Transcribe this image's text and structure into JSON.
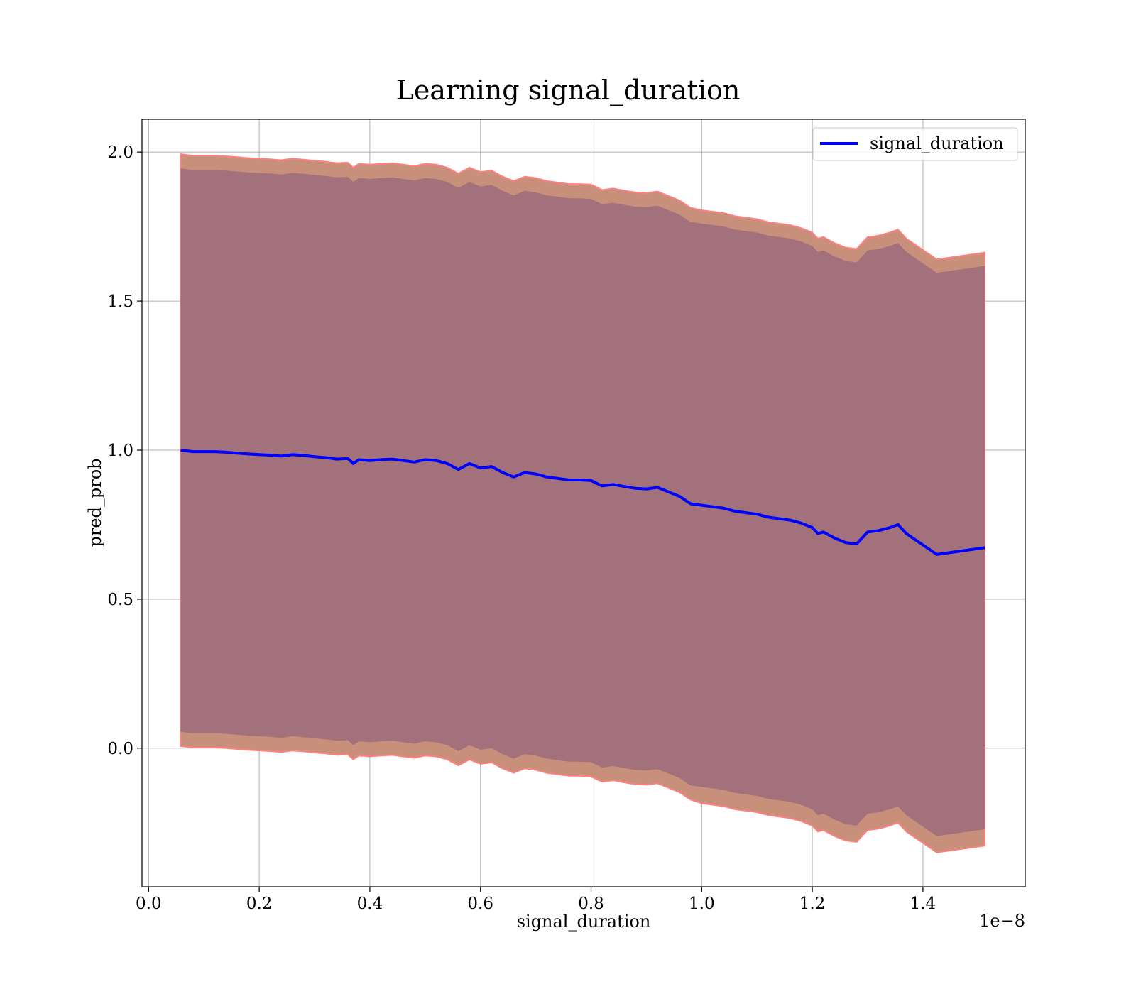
{
  "chart_data": {
    "type": "line",
    "title": "Learning signal_duration",
    "xlabel": "signal_duration",
    "ylabel": "pred_prob",
    "x_offset_text": "1e−8",
    "xlim": [
      -0.012,
      1.585
    ],
    "ylim": [
      -0.465,
      2.11
    ],
    "x_ticks": [
      0.0,
      0.2,
      0.4,
      0.6,
      0.8,
      1.0,
      1.2,
      1.4
    ],
    "x_tick_labels": [
      "0.0",
      "0.2",
      "0.4",
      "0.6",
      "0.8",
      "1.0",
      "1.2",
      "1.4"
    ],
    "y_ticks": [
      0.0,
      0.5,
      1.0,
      1.5,
      2.0
    ],
    "y_tick_labels": [
      "0.0",
      "0.5",
      "1.0",
      "1.5",
      "2.0"
    ],
    "grid": true,
    "legend": {
      "position": "top-right",
      "entries": [
        "signal_duration"
      ]
    },
    "colors": {
      "line": "#0000ff",
      "outer_band": "#c8907a",
      "outer_band_edge": "#ff8080",
      "inner_band": "#a2717b"
    },
    "series": [
      {
        "name": "signal_duration",
        "x": [
          0.058,
          0.08,
          0.1,
          0.12,
          0.14,
          0.16,
          0.18,
          0.2,
          0.22,
          0.24,
          0.26,
          0.28,
          0.3,
          0.32,
          0.34,
          0.36,
          0.37,
          0.38,
          0.4,
          0.42,
          0.44,
          0.46,
          0.48,
          0.5,
          0.52,
          0.54,
          0.56,
          0.58,
          0.6,
          0.62,
          0.64,
          0.66,
          0.68,
          0.7,
          0.72,
          0.74,
          0.76,
          0.78,
          0.8,
          0.82,
          0.84,
          0.86,
          0.88,
          0.9,
          0.92,
          0.94,
          0.96,
          0.98,
          1.0,
          1.02,
          1.04,
          1.06,
          1.08,
          1.1,
          1.12,
          1.14,
          1.16,
          1.18,
          1.2,
          1.21,
          1.22,
          1.24,
          1.26,
          1.28,
          1.3,
          1.32,
          1.34,
          1.355,
          1.37,
          1.425,
          1.512
        ],
        "y": [
          1.0,
          0.995,
          0.995,
          0.995,
          0.993,
          0.99,
          0.987,
          0.985,
          0.983,
          0.98,
          0.985,
          0.982,
          0.978,
          0.975,
          0.97,
          0.972,
          0.955,
          0.968,
          0.965,
          0.968,
          0.97,
          0.965,
          0.96,
          0.968,
          0.965,
          0.955,
          0.935,
          0.955,
          0.94,
          0.945,
          0.925,
          0.91,
          0.925,
          0.92,
          0.91,
          0.905,
          0.9,
          0.9,
          0.898,
          0.88,
          0.885,
          0.878,
          0.872,
          0.87,
          0.875,
          0.86,
          0.845,
          0.82,
          0.815,
          0.81,
          0.805,
          0.795,
          0.79,
          0.785,
          0.775,
          0.77,
          0.765,
          0.755,
          0.74,
          0.72,
          0.725,
          0.705,
          0.69,
          0.685,
          0.725,
          0.73,
          0.74,
          0.75,
          0.72,
          0.65,
          0.673
        ],
        "inner_upper": [
          1.945,
          1.94,
          1.94,
          1.94,
          1.938,
          1.935,
          1.932,
          1.93,
          1.928,
          1.925,
          1.93,
          1.927,
          1.923,
          1.92,
          1.915,
          1.917,
          1.9,
          1.913,
          1.91,
          1.913,
          1.915,
          1.91,
          1.905,
          1.913,
          1.91,
          1.9,
          1.88,
          1.9,
          1.885,
          1.89,
          1.87,
          1.855,
          1.87,
          1.865,
          1.855,
          1.85,
          1.845,
          1.845,
          1.843,
          1.825,
          1.83,
          1.823,
          1.817,
          1.815,
          1.82,
          1.805,
          1.79,
          1.765,
          1.76,
          1.755,
          1.75,
          1.74,
          1.735,
          1.73,
          1.72,
          1.715,
          1.71,
          1.7,
          1.685,
          1.665,
          1.67,
          1.65,
          1.635,
          1.63,
          1.67,
          1.675,
          1.685,
          1.695,
          1.665,
          1.595,
          1.618
        ],
        "inner_lower": [
          0.055,
          0.05,
          0.05,
          0.05,
          0.048,
          0.045,
          0.042,
          0.04,
          0.038,
          0.035,
          0.04,
          0.037,
          0.033,
          0.03,
          0.025,
          0.027,
          0.01,
          0.023,
          0.02,
          0.023,
          0.025,
          0.02,
          0.015,
          0.023,
          0.02,
          0.01,
          -0.01,
          0.01,
          -0.005,
          0.0,
          -0.02,
          -0.035,
          -0.02,
          -0.025,
          -0.035,
          -0.04,
          -0.045,
          -0.045,
          -0.047,
          -0.065,
          -0.06,
          -0.067,
          -0.073,
          -0.075,
          -0.07,
          -0.085,
          -0.1,
          -0.125,
          -0.13,
          -0.135,
          -0.14,
          -0.15,
          -0.155,
          -0.16,
          -0.17,
          -0.175,
          -0.18,
          -0.19,
          -0.205,
          -0.225,
          -0.22,
          -0.24,
          -0.255,
          -0.26,
          -0.22,
          -0.215,
          -0.205,
          -0.195,
          -0.225,
          -0.295,
          -0.272
        ],
        "outer_upper": [
          1.993,
          1.988,
          1.988,
          1.988,
          1.986,
          1.983,
          1.98,
          1.978,
          1.976,
          1.973,
          1.978,
          1.975,
          1.971,
          1.968,
          1.963,
          1.965,
          1.948,
          1.961,
          1.958,
          1.961,
          1.963,
          1.958,
          1.953,
          1.961,
          1.958,
          1.948,
          1.928,
          1.948,
          1.933,
          1.938,
          1.918,
          1.903,
          1.918,
          1.913,
          1.903,
          1.898,
          1.893,
          1.893,
          1.891,
          1.873,
          1.878,
          1.871,
          1.865,
          1.863,
          1.868,
          1.853,
          1.838,
          1.813,
          1.805,
          1.8,
          1.795,
          1.785,
          1.78,
          1.775,
          1.765,
          1.76,
          1.755,
          1.745,
          1.73,
          1.71,
          1.715,
          1.695,
          1.68,
          1.675,
          1.715,
          1.72,
          1.73,
          1.74,
          1.71,
          1.64,
          1.663
        ],
        "outer_lower": [
          0.007,
          0.002,
          0.002,
          0.002,
          0.0,
          -0.003,
          -0.006,
          -0.008,
          -0.01,
          -0.013,
          -0.008,
          -0.011,
          -0.015,
          -0.018,
          -0.023,
          -0.021,
          -0.038,
          -0.025,
          -0.028,
          -0.025,
          -0.023,
          -0.028,
          -0.033,
          -0.025,
          -0.028,
          -0.038,
          -0.058,
          -0.038,
          -0.053,
          -0.048,
          -0.068,
          -0.083,
          -0.068,
          -0.073,
          -0.083,
          -0.088,
          -0.093,
          -0.093,
          -0.095,
          -0.113,
          -0.108,
          -0.115,
          -0.121,
          -0.123,
          -0.118,
          -0.133,
          -0.148,
          -0.173,
          -0.185,
          -0.19,
          -0.195,
          -0.205,
          -0.21,
          -0.215,
          -0.225,
          -0.23,
          -0.235,
          -0.245,
          -0.26,
          -0.28,
          -0.275,
          -0.295,
          -0.31,
          -0.315,
          -0.275,
          -0.27,
          -0.26,
          -0.25,
          -0.28,
          -0.35,
          -0.327
        ]
      }
    ]
  }
}
